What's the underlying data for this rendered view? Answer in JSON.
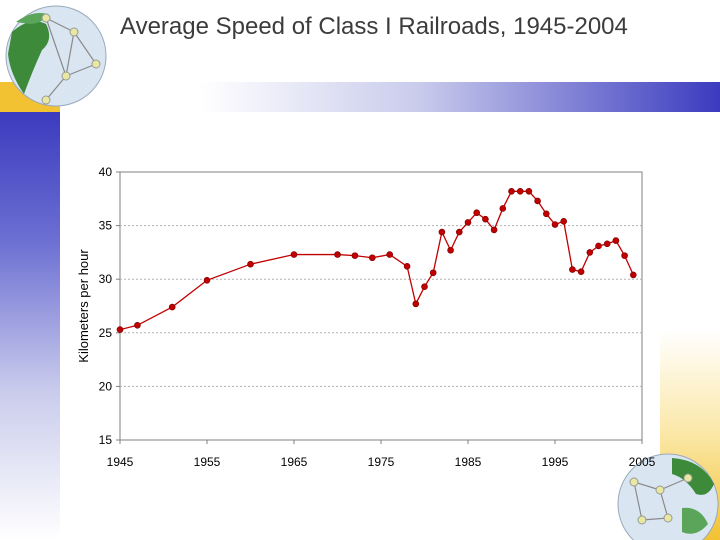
{
  "slide": {
    "title": "Average Speed of Class I Railroads, 1945-2004"
  },
  "chart_data": {
    "type": "line",
    "title": "Average Speed of Class I Railroads, 1945-2004",
    "xlabel": "",
    "ylabel": "Kilometers per hour",
    "xlim": [
      1945,
      2005
    ],
    "ylim": [
      15,
      40
    ],
    "xticks": [
      1945,
      1955,
      1965,
      1975,
      1985,
      1995,
      2005
    ],
    "yticks": [
      15,
      20,
      25,
      30,
      35,
      40
    ],
    "grid": "horizontal dotted",
    "series": [
      {
        "color": "#c00000",
        "x": [
          1945,
          1947,
          1951,
          1955,
          1960,
          1965,
          1970,
          1972,
          1974,
          1976,
          1978,
          1979,
          1980,
          1981,
          1982,
          1983,
          1984,
          1985,
          1986,
          1987,
          1988,
          1989,
          1990,
          1991,
          1992,
          1993,
          1994,
          1995,
          1996,
          1997,
          1998,
          1999,
          2000,
          2001,
          2002,
          2003,
          2004
        ],
        "y": [
          25.3,
          25.7,
          27.4,
          29.9,
          31.4,
          32.3,
          32.3,
          32.2,
          32.0,
          32.3,
          31.2,
          27.7,
          29.3,
          30.6,
          34.4,
          32.7,
          34.4,
          35.3,
          36.2,
          35.6,
          34.6,
          36.6,
          38.2,
          38.2,
          38.2,
          37.3,
          36.1,
          35.1,
          35.4,
          30.9,
          30.7,
          32.5,
          33.1,
          33.3,
          33.6,
          32.2,
          30.4
        ]
      }
    ]
  }
}
